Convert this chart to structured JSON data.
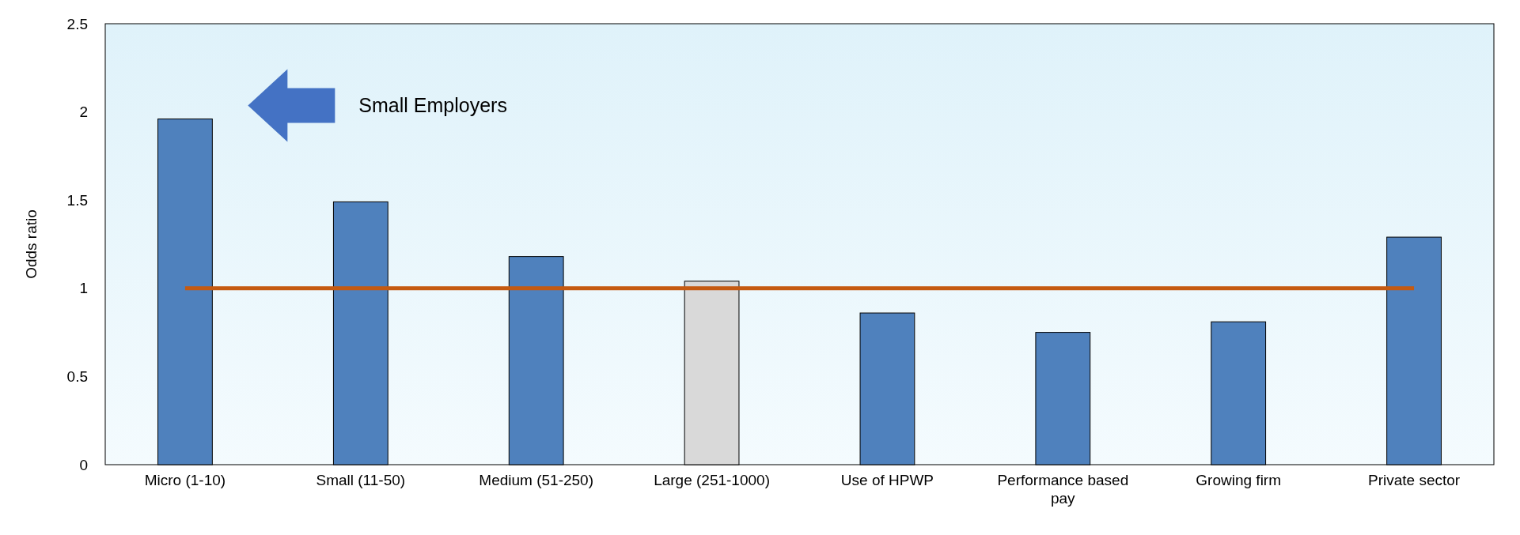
{
  "chart_data": {
    "type": "bar",
    "ylabel": "Odds ratio",
    "categories": [
      "Micro (1-10)",
      "Small (11-50)",
      "Medium (51-250)",
      "Large (251-1000)",
      "Use of HPWP",
      "Performance based pay",
      "Growing firm",
      "Private sector"
    ],
    "values": [
      1.96,
      1.49,
      1.18,
      1.04,
      0.86,
      0.75,
      0.81,
      1.29
    ],
    "colors": [
      "#4f81bd",
      "#4f81bd",
      "#4f81bd",
      "#d9d9d9",
      "#4f81bd",
      "#4f81bd",
      "#4f81bd",
      "#4f81bd"
    ],
    "ylim": [
      0,
      2.5
    ],
    "yticks": [
      0,
      0.5,
      1,
      1.5,
      2,
      2.5
    ],
    "grid": false,
    "ref_lines": [
      {
        "axis": "y",
        "value": 1,
        "color": "#c55a11"
      }
    ],
    "annotations": [
      "Small Employers"
    ]
  }
}
